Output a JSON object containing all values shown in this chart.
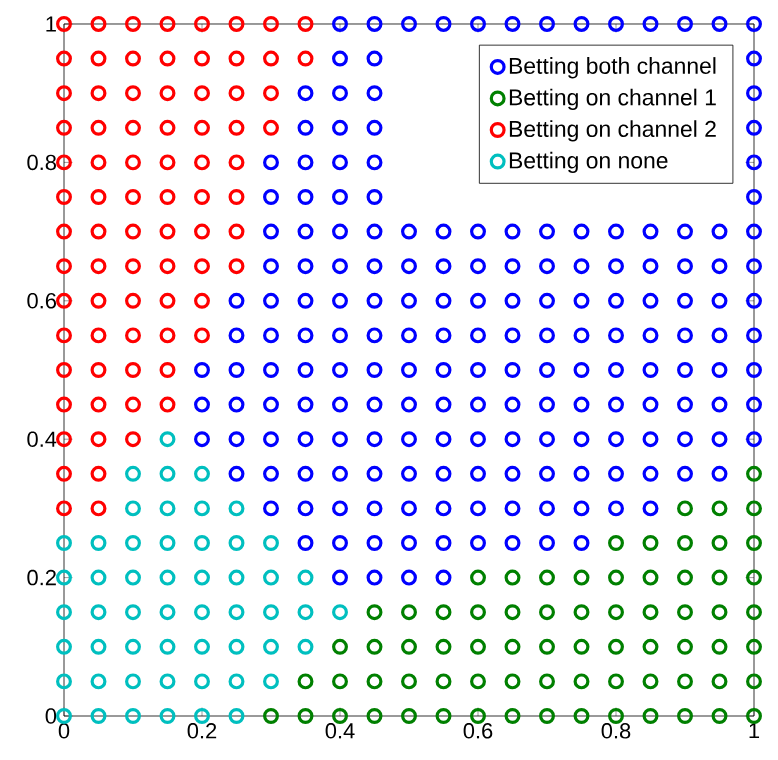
{
  "chart_data": {
    "type": "scatter",
    "marker": "circle",
    "legend": "top right",
    "xlim": [
      0,
      1
    ],
    "ylim": [
      0,
      1
    ],
    "xticks": [
      0,
      0.2,
      0.4,
      0.6,
      0.8,
      1
    ],
    "yticks": [
      0,
      0.2,
      0.4,
      0.6,
      0.8,
      1
    ],
    "series": [
      {
        "name": "Betting both channel",
        "color": "#0000ff",
        "x": [
          0.4,
          0.45,
          0.5,
          0.55,
          0.35,
          0.4,
          0.45,
          0.5,
          0.55,
          0.6,
          0.65,
          0.7,
          0.75,
          0.3,
          0.35,
          0.4,
          0.45,
          0.5,
          0.55,
          0.6,
          0.65,
          0.7,
          0.75,
          0.8,
          0.85,
          0.25,
          0.3,
          0.35,
          0.4,
          0.45,
          0.5,
          0.55,
          0.6,
          0.65,
          0.7,
          0.75,
          0.8,
          0.85,
          0.9,
          0.95,
          0.2,
          0.25,
          0.3,
          0.35,
          0.4,
          0.45,
          0.5,
          0.55,
          0.6,
          0.65,
          0.7,
          0.75,
          0.8,
          0.85,
          0.9,
          0.95,
          1,
          0.2,
          0.25,
          0.3,
          0.35,
          0.4,
          0.45,
          0.5,
          0.55,
          0.6,
          0.65,
          0.7,
          0.75,
          0.8,
          0.85,
          0.9,
          0.95,
          1,
          0.2,
          0.25,
          0.3,
          0.35,
          0.4,
          0.45,
          0.5,
          0.55,
          0.6,
          0.65,
          0.7,
          0.75,
          0.8,
          0.85,
          0.9,
          0.95,
          1,
          0.25,
          0.3,
          0.35,
          0.4,
          0.45,
          0.5,
          0.55,
          0.6,
          0.65,
          0.7,
          0.75,
          0.8,
          0.85,
          0.9,
          0.95,
          1,
          0.25,
          0.3,
          0.35,
          0.4,
          0.45,
          0.5,
          0.55,
          0.6,
          0.65,
          0.7,
          0.75,
          0.8,
          0.85,
          0.9,
          0.95,
          1,
          0.3,
          0.35,
          0.4,
          0.45,
          0.5,
          0.55,
          0.6,
          0.65,
          0.7,
          0.75,
          0.8,
          0.85,
          0.9,
          0.95,
          1,
          0.3,
          0.35,
          0.4,
          0.45,
          0.5,
          0.55,
          0.6,
          0.65,
          0.7,
          0.75,
          0.8,
          0.85,
          0.9,
          0.95,
          1,
          0.3,
          0.35,
          0.4,
          0.45,
          1,
          0.3,
          0.35,
          0.4,
          0.45,
          1,
          0.35,
          0.4,
          0.45,
          1,
          0.35,
          0.4,
          0.45,
          1,
          0.4,
          0.45,
          1,
          0.4,
          0.45,
          0.5,
          0.55,
          0.6,
          0.65,
          0.7,
          0.75,
          0.8,
          0.85,
          0.9,
          0.95,
          1
        ],
        "values": [
          0.2,
          0.2,
          0.2,
          0.2,
          0.25,
          0.25,
          0.25,
          0.25,
          0.25,
          0.25,
          0.25,
          0.25,
          0.25,
          0.3,
          0.3,
          0.3,
          0.3,
          0.3,
          0.3,
          0.3,
          0.3,
          0.3,
          0.3,
          0.3,
          0.3,
          0.35,
          0.35,
          0.35,
          0.35,
          0.35,
          0.35,
          0.35,
          0.35,
          0.35,
          0.35,
          0.35,
          0.35,
          0.35,
          0.35,
          0.35,
          0.4,
          0.4,
          0.4,
          0.4,
          0.4,
          0.4,
          0.4,
          0.4,
          0.4,
          0.4,
          0.4,
          0.4,
          0.4,
          0.4,
          0.4,
          0.4,
          0.4,
          0.45,
          0.45,
          0.45,
          0.45,
          0.45,
          0.45,
          0.45,
          0.45,
          0.45,
          0.45,
          0.45,
          0.45,
          0.45,
          0.45,
          0.45,
          0.45,
          0.45,
          0.5,
          0.5,
          0.5,
          0.5,
          0.5,
          0.5,
          0.5,
          0.5,
          0.5,
          0.5,
          0.5,
          0.5,
          0.5,
          0.5,
          0.5,
          0.5,
          0.5,
          0.55,
          0.55,
          0.55,
          0.55,
          0.55,
          0.55,
          0.55,
          0.55,
          0.55,
          0.55,
          0.55,
          0.55,
          0.55,
          0.55,
          0.55,
          0.55,
          0.6,
          0.6,
          0.6,
          0.6,
          0.6,
          0.6,
          0.6,
          0.6,
          0.6,
          0.6,
          0.6,
          0.6,
          0.6,
          0.6,
          0.6,
          0.6,
          0.65,
          0.65,
          0.65,
          0.65,
          0.65,
          0.65,
          0.65,
          0.65,
          0.65,
          0.65,
          0.65,
          0.65,
          0.65,
          0.65,
          0.65,
          0.7,
          0.7,
          0.7,
          0.7,
          0.7,
          0.7,
          0.7,
          0.7,
          0.7,
          0.7,
          0.7,
          0.7,
          0.7,
          0.7,
          0.7,
          0.75,
          0.75,
          0.75,
          0.75,
          0.75,
          0.8,
          0.8,
          0.8,
          0.8,
          0.8,
          0.85,
          0.85,
          0.85,
          0.85,
          0.9,
          0.9,
          0.9,
          0.9,
          0.95,
          0.95,
          0.95,
          1,
          1,
          1,
          1,
          1,
          1,
          1,
          1,
          1,
          1,
          1,
          1,
          1
        ]
      },
      {
        "name": "Betting on channel 1",
        "color": "#008000",
        "x": [
          0.3,
          0.35,
          0.4,
          0.45,
          0.5,
          0.55,
          0.6,
          0.65,
          0.7,
          0.75,
          0.8,
          0.85,
          0.9,
          0.95,
          1,
          0.35,
          0.4,
          0.45,
          0.5,
          0.55,
          0.6,
          0.65,
          0.7,
          0.75,
          0.8,
          0.85,
          0.9,
          0.95,
          1,
          0.4,
          0.45,
          0.5,
          0.55,
          0.6,
          0.65,
          0.7,
          0.75,
          0.8,
          0.85,
          0.9,
          0.95,
          1,
          0.45,
          0.5,
          0.55,
          0.6,
          0.65,
          0.7,
          0.75,
          0.8,
          0.85,
          0.9,
          0.95,
          1,
          0.6,
          0.65,
          0.7,
          0.75,
          0.8,
          0.85,
          0.9,
          0.95,
          1,
          0.8,
          0.85,
          0.9,
          0.95,
          1,
          0.9,
          0.95,
          1,
          1
        ],
        "values": [
          0,
          0,
          0,
          0,
          0,
          0,
          0,
          0,
          0,
          0,
          0,
          0,
          0,
          0,
          0,
          0.05,
          0.05,
          0.05,
          0.05,
          0.05,
          0.05,
          0.05,
          0.05,
          0.05,
          0.05,
          0.05,
          0.05,
          0.05,
          0.05,
          0.1,
          0.1,
          0.1,
          0.1,
          0.1,
          0.1,
          0.1,
          0.1,
          0.1,
          0.1,
          0.1,
          0.1,
          0.1,
          0.15,
          0.15,
          0.15,
          0.15,
          0.15,
          0.15,
          0.15,
          0.15,
          0.15,
          0.15,
          0.15,
          0.15,
          0.2,
          0.2,
          0.2,
          0.2,
          0.2,
          0.2,
          0.2,
          0.2,
          0.2,
          0.25,
          0.25,
          0.25,
          0.25,
          0.25,
          0.3,
          0.3,
          0.3,
          0.35
        ]
      },
      {
        "name": "Betting on channel 2",
        "color": "#ff0000",
        "x": [
          0,
          0.05,
          0,
          0.05,
          0,
          0.05,
          0.1,
          0,
          0.05,
          0.1,
          0.15,
          0,
          0.05,
          0.1,
          0.15,
          0,
          0.05,
          0.1,
          0.15,
          0.2,
          0,
          0.05,
          0.1,
          0.15,
          0.2,
          0,
          0.05,
          0.1,
          0.15,
          0.2,
          0.25,
          0,
          0.05,
          0.1,
          0.15,
          0.2,
          0.25,
          0,
          0.05,
          0.1,
          0.15,
          0.2,
          0.25,
          0,
          0.05,
          0.1,
          0.15,
          0.2,
          0.25,
          0,
          0.05,
          0.1,
          0.15,
          0.2,
          0.25,
          0.3,
          0,
          0.05,
          0.1,
          0.15,
          0.2,
          0.25,
          0.3,
          0,
          0.05,
          0.1,
          0.15,
          0.2,
          0.25,
          0.3,
          0.35,
          0,
          0.05,
          0.1,
          0.15,
          0.2,
          0.25,
          0.3,
          0.35
        ],
        "values": [
          0.3,
          0.3,
          0.35,
          0.35,
          0.4,
          0.4,
          0.4,
          0.45,
          0.45,
          0.45,
          0.45,
          0.5,
          0.5,
          0.5,
          0.5,
          0.55,
          0.55,
          0.55,
          0.55,
          0.55,
          0.6,
          0.6,
          0.6,
          0.6,
          0.6,
          0.65,
          0.65,
          0.65,
          0.65,
          0.65,
          0.65,
          0.7,
          0.7,
          0.7,
          0.7,
          0.7,
          0.7,
          0.75,
          0.75,
          0.75,
          0.75,
          0.75,
          0.75,
          0.8,
          0.8,
          0.8,
          0.8,
          0.8,
          0.8,
          0.85,
          0.85,
          0.85,
          0.85,
          0.85,
          0.85,
          0.85,
          0.9,
          0.9,
          0.9,
          0.9,
          0.9,
          0.9,
          0.9,
          0.95,
          0.95,
          0.95,
          0.95,
          0.95,
          0.95,
          0.95,
          0.95,
          1,
          1,
          1,
          1,
          1,
          1,
          1,
          1
        ]
      },
      {
        "name": "Betting on none",
        "color": "#00bfbf",
        "x": [
          0,
          0.05,
          0.1,
          0.15,
          0.2,
          0.25,
          0,
          0.05,
          0.1,
          0.15,
          0.2,
          0.25,
          0.3,
          0,
          0.05,
          0.1,
          0.15,
          0.2,
          0.25,
          0.3,
          0.35,
          0,
          0.05,
          0.1,
          0.15,
          0.2,
          0.25,
          0.3,
          0.35,
          0.4,
          0,
          0.05,
          0.1,
          0.15,
          0.2,
          0.25,
          0.3,
          0.35,
          0,
          0.05,
          0.1,
          0.15,
          0.2,
          0.25,
          0.3,
          0.1,
          0.15,
          0.2,
          0.25,
          0.1,
          0.15,
          0.2,
          0.15
        ],
        "values": [
          0,
          0,
          0,
          0,
          0,
          0,
          0.05,
          0.05,
          0.05,
          0.05,
          0.05,
          0.05,
          0.05,
          0.1,
          0.1,
          0.1,
          0.1,
          0.1,
          0.1,
          0.1,
          0.1,
          0.15,
          0.15,
          0.15,
          0.15,
          0.15,
          0.15,
          0.15,
          0.15,
          0.15,
          0.2,
          0.2,
          0.2,
          0.2,
          0.2,
          0.2,
          0.2,
          0.2,
          0.25,
          0.25,
          0.25,
          0.25,
          0.25,
          0.25,
          0.25,
          0.3,
          0.3,
          0.3,
          0.3,
          0.35,
          0.35,
          0.35,
          0.4
        ]
      }
    ]
  }
}
